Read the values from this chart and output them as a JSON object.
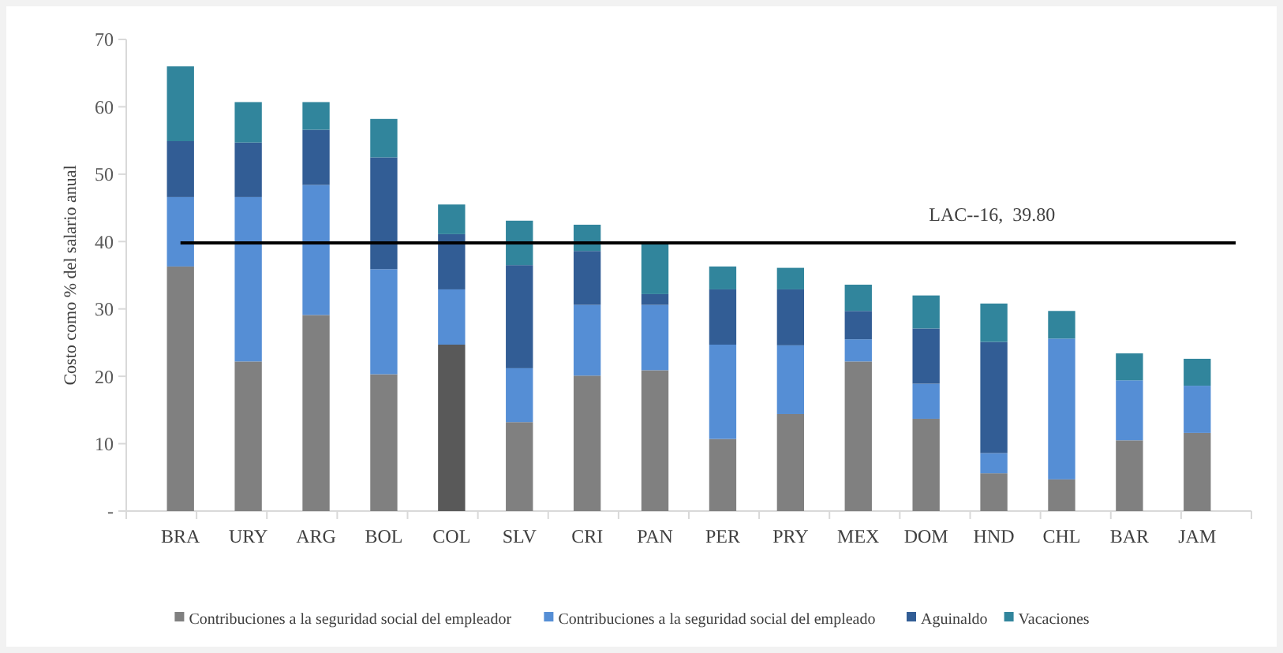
{
  "chart_data": {
    "type": "bar",
    "stacked": true,
    "ylabel": "Costo como % del salario anual",
    "categories": [
      "BRA",
      "URY",
      "ARG",
      "BOL",
      "COL",
      "SLV",
      "CRI",
      "PAN",
      "PER",
      "PRY",
      "MEX",
      "DOM",
      "HND",
      "CHL",
      "BAR",
      "JAM"
    ],
    "series": [
      {
        "name": "Contribuciones a la seguridad social del empleador",
        "color": "#808080",
        "colors": [
          "#808080",
          "#808080",
          "#808080",
          "#808080",
          "#595959",
          "#808080",
          "#808080",
          "#808080",
          "#808080",
          "#808080",
          "#808080",
          "#808080",
          "#808080",
          "#808080",
          "#808080",
          "#808080"
        ],
        "values": [
          36.3,
          22.2,
          29.1,
          20.3,
          24.7,
          13.2,
          20.1,
          20.9,
          10.7,
          14.4,
          22.2,
          13.7,
          5.6,
          4.7,
          10.5,
          11.6
        ]
      },
      {
        "name": "Contribuciones a la seguridad social del empleado",
        "color": "#558ed5",
        "values": [
          10.3,
          24.4,
          19.3,
          15.6,
          8.2,
          8.0,
          10.5,
          9.7,
          14.0,
          10.2,
          3.3,
          5.2,
          3.0,
          20.9,
          8.9,
          7.0
        ]
      },
      {
        "name": "Aguinaldo",
        "color": "#325d95",
        "values": [
          8.3,
          8.1,
          8.2,
          16.6,
          8.2,
          15.3,
          8.0,
          1.6,
          8.2,
          8.3,
          4.2,
          8.2,
          16.5,
          0,
          0,
          0
        ]
      },
      {
        "name": "Vacaciones",
        "color": "#31859c",
        "values": [
          11.1,
          6.0,
          4.1,
          5.7,
          4.4,
          6.6,
          3.9,
          7.6,
          3.4,
          3.2,
          3.9,
          4.9,
          5.7,
          4.1,
          4.0,
          4.0
        ]
      }
    ],
    "ylim": [
      0,
      70
    ],
    "yticks": [
      {
        "value": 0,
        "label": "-"
      },
      10,
      20,
      30,
      40,
      50,
      60,
      70
    ],
    "ref_lines": [
      {
        "axis": "y",
        "value": 39.8,
        "label": "LAC--16,  39.80",
        "color": "#000000"
      }
    ],
    "legend": "bottom"
  }
}
